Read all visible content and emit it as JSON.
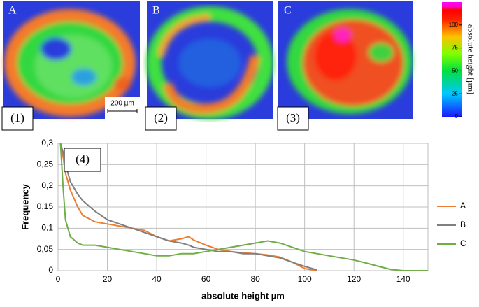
{
  "panels": [
    {
      "letter": "A",
      "number": "(1)"
    },
    {
      "letter": "B",
      "number": "(2)"
    },
    {
      "letter": "C",
      "number": "(3)"
    }
  ],
  "scale_bar": "200 µm",
  "chart_data": [
    {
      "type": "line",
      "annotation": "(4)",
      "x_label": "absolute height µm",
      "y_label": "Frequency",
      "x": [
        1,
        2,
        3,
        5,
        8,
        10,
        15,
        20,
        25,
        30,
        35,
        40,
        45,
        50,
        53,
        55,
        60,
        65,
        70,
        75,
        80,
        85,
        90,
        95,
        100,
        105,
        110,
        115,
        120,
        125,
        130,
        135,
        140,
        145,
        150
      ],
      "series": [
        {
          "name": "A",
          "color": "#ed7d31",
          "values": [
            0.3,
            0.27,
            0.23,
            0.19,
            0.15,
            0.13,
            0.115,
            0.11,
            0.105,
            0.1,
            0.095,
            0.08,
            0.07,
            0.075,
            0.08,
            0.072,
            0.06,
            0.05,
            0.045,
            0.042,
            0.04,
            0.037,
            0.032,
            0.02,
            0.005,
            0,
            null,
            null,
            null,
            null,
            null,
            null,
            null,
            null,
            null
          ]
        },
        {
          "name": "B",
          "color": "#7f7f7f",
          "values": [
            0.3,
            0.28,
            0.25,
            0.21,
            0.18,
            0.165,
            0.14,
            0.12,
            0.11,
            0.1,
            0.09,
            0.08,
            0.07,
            0.065,
            0.06,
            0.055,
            0.05,
            0.045,
            0.045,
            0.04,
            0.04,
            0.035,
            0.03,
            0.02,
            0.01,
            0.002,
            null,
            null,
            null,
            null,
            null,
            null,
            null,
            null,
            null
          ]
        },
        {
          "name": "C",
          "color": "#70ad47",
          "values": [
            0.3,
            0.2,
            0.12,
            0.08,
            0.065,
            0.06,
            0.06,
            0.055,
            0.05,
            0.045,
            0.04,
            0.035,
            0.035,
            0.04,
            0.04,
            0.04,
            0.045,
            0.05,
            0.055,
            0.06,
            0.065,
            0.07,
            0.065,
            0.055,
            0.045,
            0.04,
            0.035,
            0.03,
            0.025,
            0.018,
            0.01,
            0.003,
            0,
            0,
            0
          ]
        }
      ],
      "xlim": [
        0,
        150
      ],
      "xticks": [
        0,
        20,
        40,
        60,
        80,
        100,
        120,
        140
      ],
      "ylim": [
        0,
        0.3
      ],
      "yticks": [
        0,
        {
          "value": 0.05,
          "label": "0,05"
        },
        {
          "value": 0.1,
          "label": "0,1"
        },
        {
          "value": 0.15,
          "label": "0,15"
        },
        {
          "value": 0.2,
          "label": "0,2"
        },
        {
          "value": 0.25,
          "label": "0,25"
        },
        {
          "value": 0.3,
          "label": "0,3"
        }
      ],
      "grid": true,
      "legend": "right"
    },
    {
      "type": "colorbar",
      "label": "absolute height [µm]",
      "ylim": [
        0,
        125
      ],
      "yticks": [
        0,
        25,
        50,
        75,
        100
      ]
    }
  ]
}
